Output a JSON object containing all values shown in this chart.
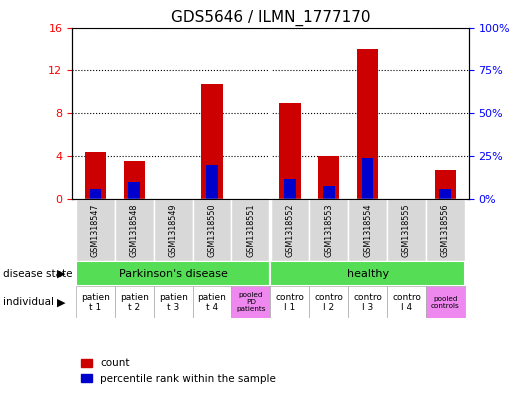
{
  "title": "GDS5646 / ILMN_1777170",
  "samples": [
    "GSM1318547",
    "GSM1318548",
    "GSM1318549",
    "GSM1318550",
    "GSM1318551",
    "GSM1318552",
    "GSM1318553",
    "GSM1318554",
    "GSM1318555",
    "GSM1318556"
  ],
  "counts": [
    4.4,
    3.6,
    0,
    10.7,
    0,
    9.0,
    4.0,
    14.0,
    0,
    2.7
  ],
  "percentile_ranks": [
    6,
    10,
    0,
    20,
    0,
    12,
    8,
    24,
    0,
    6
  ],
  "ylim_left": [
    0,
    16
  ],
  "ylim_right": [
    0,
    100
  ],
  "yticks_left": [
    0,
    4,
    8,
    12,
    16
  ],
  "yticks_right": [
    0,
    25,
    50,
    75,
    100
  ],
  "ytick_labels_left": [
    "0",
    "4",
    "8",
    "12",
    "16"
  ],
  "ytick_labels_right": [
    "0%",
    "25%",
    "50%",
    "75%",
    "100%"
  ],
  "bar_color": "#cc0000",
  "percentile_color": "#0000cc",
  "individual_labels": [
    {
      "text": "patien\nt 1",
      "bg": "#ffffff",
      "col": 0
    },
    {
      "text": "patien\nt 2",
      "bg": "#ffffff",
      "col": 1
    },
    {
      "text": "patien\nt 3",
      "bg": "#ffffff",
      "col": 2
    },
    {
      "text": "patien\nt 4",
      "bg": "#ffffff",
      "col": 3
    },
    {
      "text": "pooled\nPD\npatients",
      "bg": "#ee88ee",
      "col": 4
    },
    {
      "text": "contro\nl 1",
      "bg": "#ffffff",
      "col": 5
    },
    {
      "text": "contro\nl 2",
      "bg": "#ffffff",
      "col": 6
    },
    {
      "text": "contro\nl 3",
      "bg": "#ffffff",
      "col": 7
    },
    {
      "text": "contro\nl 4",
      "bg": "#ffffff",
      "col": 8
    },
    {
      "text": "pooled\ncontrols",
      "bg": "#ee88ee",
      "col": 9
    }
  ],
  "disease_bg": "#55dd55",
  "individual_pooled_bg": "#ee88ee",
  "individual_normal_bg": "#ffffff",
  "left_label_disease": "disease state",
  "left_label_individual": "individual",
  "separator_col": 4,
  "pd_label": "Parkinson's disease",
  "healthy_label": "healthy",
  "legend_count": "count",
  "legend_percentile": "percentile rank within the sample"
}
